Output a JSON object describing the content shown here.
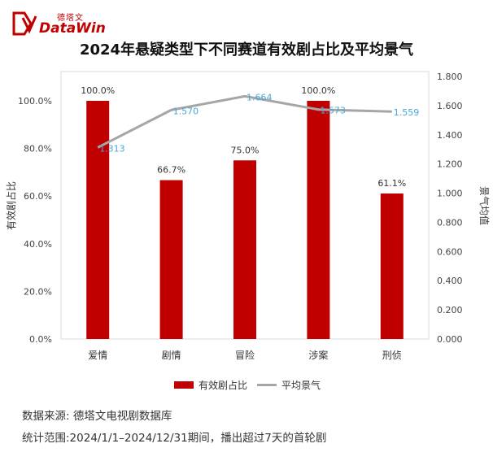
{
  "brand": {
    "name_cn": "德塔文",
    "name_en": "DataWin"
  },
  "title": "2024年悬疑类型下不同赛道有效剧占比及平均景气",
  "chart_data": {
    "type": "bar",
    "categories": [
      "爱情",
      "剧情",
      "冒险",
      "涉案",
      "刑侦"
    ],
    "series": [
      {
        "name": "有效剧占比",
        "type": "bar",
        "axis": "left",
        "color": "#c00000",
        "values": [
          100.0,
          66.7,
          75.0,
          100.0,
          61.1
        ],
        "labels": [
          "100.0%",
          "66.7%",
          "75.0%",
          "100.0%",
          "61.1%"
        ]
      },
      {
        "name": "平均景气",
        "type": "line",
        "axis": "right",
        "color": "#a6a6a6",
        "values": [
          1.313,
          1.57,
          1.664,
          1.573,
          1.559
        ],
        "labels": [
          "1.313",
          "1.570",
          "1.664",
          "1.573",
          "1.559"
        ]
      }
    ],
    "ylabel": "有效剧占比",
    "y2label": "景气均值",
    "ylim": [
      0,
      110
    ],
    "y2lim": [
      0,
      1.8
    ],
    "yticks": [
      "0.0%",
      "20.0%",
      "40.0%",
      "60.0%",
      "80.0%",
      "100.0%"
    ],
    "y2ticks": [
      "0.000",
      "0.200",
      "0.400",
      "0.600",
      "0.800",
      "1.000",
      "1.200",
      "1.400",
      "1.600",
      "1.800"
    ],
    "legend_position": "bottom"
  },
  "legend": {
    "bar_label": "有效剧占比",
    "line_label": "平均景气"
  },
  "notes": {
    "source": "数据来源: 德塔文电视剧数据库",
    "scope": "统计范围:2024/1/1–2024/12/31期间，播出超过7天的首轮剧"
  }
}
